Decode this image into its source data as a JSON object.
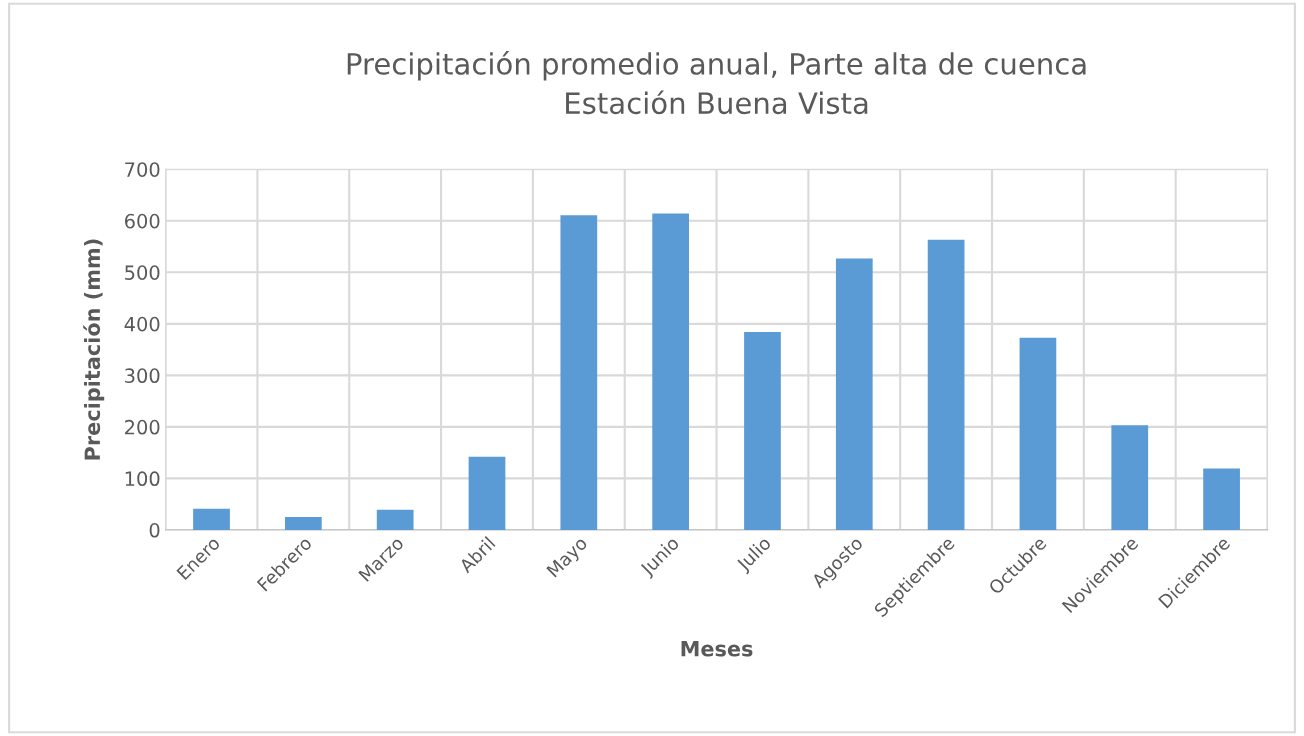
{
  "chart_data": {
    "type": "bar",
    "title": "Precipitación promedio anual, Parte alta de cuenca\nEstación Buena Vista",
    "xlabel": "Meses",
    "ylabel": "Precipitación (mm)",
    "categories": [
      "Enero",
      "Febrero",
      "Marzo",
      "Abril",
      "Mayo",
      "Junio",
      "Julio",
      "Agosto",
      "Septiembre",
      "Octubre",
      "Noviembre",
      "Diciembre"
    ],
    "values": [
      41,
      25,
      39,
      142,
      611,
      614,
      384,
      527,
      563,
      373,
      203,
      119
    ],
    "color": "#5b9bd5",
    "ylim": [
      0,
      700
    ],
    "yticks": [
      0,
      100,
      200,
      300,
      400,
      500,
      600,
      700
    ],
    "grid": true
  }
}
